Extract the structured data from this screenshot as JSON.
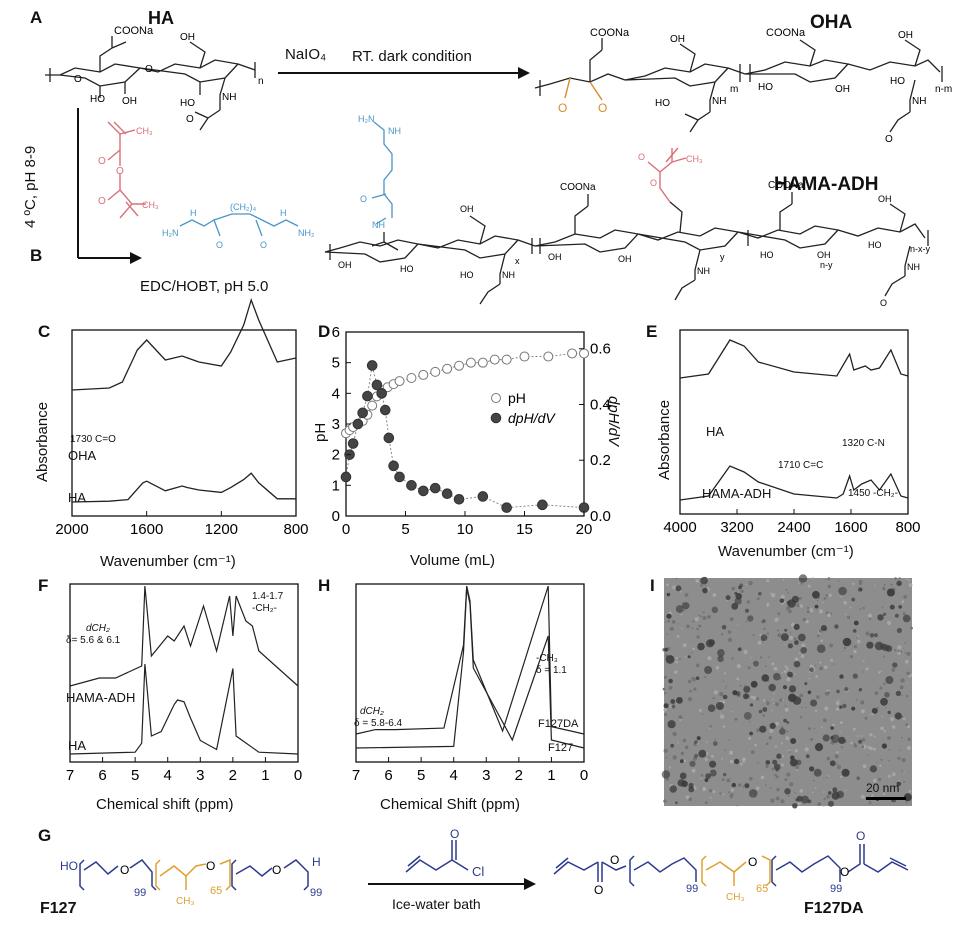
{
  "scheme": {
    "panel_a": "A",
    "panel_b": "B",
    "ha_title": "HA",
    "oha_title": "OHA",
    "hama_adh_title": "HAMA-ADH",
    "reagent_naio4": "NaIO₄",
    "cond_dark": "RT. dark condition",
    "cond_cold": "4 ºC, pH 8-9",
    "cond_edc": "EDC/HOBT, pH 5.0",
    "coona": "COONa",
    "oh": "OH",
    "nh": "NH",
    "h2n": "H₂N",
    "sub_n": "n",
    "sub_m": "m",
    "sub_nm": "n-m",
    "sub_x": "x",
    "sub_y": "y",
    "sub_ny": "n-y",
    "sub_nxy": "n-x-y",
    "ch3": "CH₃",
    "ch2_4": "(CH₂)₄",
    "nh2": "NH₂"
  },
  "panels": {
    "c": {
      "label": "C",
      "ylabel": "Absorbance",
      "xlabel": "Wavenumber (cm⁻¹)",
      "ticks": [
        "2000",
        "1600",
        "1200",
        "800"
      ],
      "annot": "1730 C=O",
      "series": [
        "OHA",
        "HA"
      ]
    },
    "d": {
      "label": "D",
      "ylabel_left": "pH",
      "ylabel_right": "dpH/dV",
      "xlabel": "Volume (mL)",
      "xticks": [
        "0",
        "5",
        "10",
        "15",
        "20"
      ],
      "yticks_left": [
        "0",
        "1",
        "2",
        "3",
        "4",
        "5",
        "6"
      ],
      "yticks_right": [
        "0.0",
        "0.2",
        "0.4",
        "0.6"
      ],
      "legend": [
        "pH",
        "dpH/dV"
      ]
    },
    "e": {
      "label": "E",
      "ylabel": "Absorbance",
      "xlabel": "Wavenumber (cm⁻¹)",
      "ticks": [
        "4000",
        "3200",
        "2400",
        "1600",
        "800"
      ],
      "annot_1": "1320 C-N",
      "annot_2": "1710 C=C",
      "annot_3": "1450 -CH₂-",
      "series": [
        "HA",
        "HAMA-ADH"
      ]
    },
    "f": {
      "label": "F",
      "xlabel": "Chemical shift (ppm)",
      "ticks": [
        "7",
        "6",
        "5",
        "4",
        "3",
        "2",
        "1",
        "0"
      ],
      "annot_1a": "1.4-1.7",
      "annot_1b": "-CH₂-",
      "annot_2a": "dCH₂",
      "annot_2b": "δ= 5.6 & 6.1",
      "series": [
        "HAMA-ADH",
        "HA"
      ]
    },
    "h": {
      "label": "H",
      "xlabel": "Chemical Shift (ppm)",
      "ticks": [
        "7",
        "6",
        "5",
        "4",
        "3",
        "2",
        "1",
        "0"
      ],
      "annot_1a": "-CH₃",
      "annot_1b": "δ = 1.1",
      "annot_2a": "dCH₂",
      "annot_2b": "δ = 5.8-6.4",
      "series": [
        "F127DA",
        "F127"
      ]
    },
    "i": {
      "label": "I",
      "scale": "20 nm"
    },
    "g": {
      "label": "G",
      "f127": "F127",
      "f127da": "F127DA",
      "cond": "Ice-water bath",
      "cl": "Cl",
      "ho": "HO",
      "h": "H",
      "n99": "99",
      "n65": "65",
      "ch3": "CH₃",
      "o": "O"
    }
  },
  "chart_data": [
    {
      "type": "line",
      "panel": "C",
      "xlabel": "Wavenumber (cm⁻¹)",
      "ylabel": "Absorbance",
      "xlim": [
        2000,
        800
      ],
      "series": [
        {
          "name": "OHA",
          "x": [
            2000,
            1800,
            1730,
            1650,
            1600,
            1500,
            1410,
            1380,
            1320,
            1200,
            1150,
            1080,
            1040,
            1000,
            900,
            800
          ],
          "y": [
            0.5,
            0.52,
            0.58,
            0.9,
            1.0,
            0.8,
            0.84,
            0.82,
            0.78,
            0.74,
            0.88,
            1.15,
            1.4,
            1.2,
            0.78,
            0.82
          ]
        },
        {
          "name": "HA",
          "x": [
            2000,
            1800,
            1700,
            1620,
            1600,
            1500,
            1410,
            1380,
            1320,
            1200,
            1150,
            1080,
            1040,
            1000,
            900,
            800
          ],
          "y": [
            0.1,
            0.11,
            0.13,
            0.34,
            0.36,
            0.24,
            0.3,
            0.28,
            0.25,
            0.22,
            0.28,
            0.38,
            0.46,
            0.34,
            0.14,
            0.14
          ]
        }
      ]
    },
    {
      "type": "scatter",
      "panel": "D",
      "xlabel": "Volume (mL)",
      "ylabel": "pH",
      "xlim": [
        0,
        20
      ],
      "ylim": [
        0,
        6
      ],
      "y2label": "dpH/dV",
      "y2lim": [
        0,
        0.66
      ],
      "series": [
        {
          "name": "pH",
          "axis": "left",
          "x": [
            0,
            0.3,
            0.6,
            1.0,
            1.4,
            1.8,
            2.2,
            2.6,
            3.0,
            3.5,
            4.0,
            4.5,
            5.5,
            6.5,
            7.5,
            8.5,
            9.5,
            10.5,
            11.5,
            12.5,
            13.5,
            15.0,
            17.0,
            19.0,
            20.0
          ],
          "y": [
            2.7,
            2.8,
            2.9,
            3.0,
            3.1,
            3.3,
            3.6,
            3.9,
            4.1,
            4.2,
            4.3,
            4.4,
            4.5,
            4.6,
            4.7,
            4.8,
            4.9,
            5.0,
            5.0,
            5.1,
            5.1,
            5.2,
            5.2,
            5.3,
            5.3
          ]
        },
        {
          "name": "dpH/dV",
          "axis": "right",
          "x": [
            0,
            0.3,
            0.6,
            1.0,
            1.4,
            1.8,
            2.2,
            2.6,
            3.0,
            3.3,
            3.6,
            4.0,
            4.5,
            5.5,
            6.5,
            7.5,
            8.5,
            9.5,
            11.5,
            13.5,
            16.5,
            20.0
          ],
          "y": [
            0.14,
            0.22,
            0.26,
            0.33,
            0.37,
            0.43,
            0.54,
            0.47,
            0.44,
            0.38,
            0.28,
            0.18,
            0.14,
            0.11,
            0.09,
            0.1,
            0.08,
            0.06,
            0.07,
            0.03,
            0.04,
            0.03
          ]
        }
      ]
    },
    {
      "type": "line",
      "panel": "E",
      "xlabel": "Wavenumber (cm⁻¹)",
      "ylabel": "Absorbance",
      "xlim": [
        4000,
        800
      ],
      "series": [
        {
          "name": "HA",
          "x": [
            4000,
            3600,
            3300,
            3100,
            2900,
            2400,
            1800,
            1620,
            1560,
            1400,
            1320,
            1200,
            1040,
            900,
            800
          ],
          "y": [
            0.62,
            0.66,
            1.0,
            0.94,
            0.78,
            0.68,
            0.64,
            0.86,
            0.7,
            0.74,
            0.7,
            0.72,
            0.9,
            0.66,
            0.64
          ]
        },
        {
          "name": "HAMA-ADH",
          "x": [
            4000,
            3600,
            3300,
            3100,
            2900,
            2400,
            1800,
            1710,
            1620,
            1560,
            1450,
            1320,
            1200,
            1040,
            900,
            800
          ],
          "y": [
            0.1,
            0.14,
            0.44,
            0.38,
            0.28,
            0.16,
            0.12,
            0.16,
            0.34,
            0.2,
            0.26,
            0.3,
            0.2,
            0.36,
            0.14,
            0.12
          ]
        }
      ]
    },
    {
      "type": "line",
      "panel": "F",
      "xlabel": "Chemical shift (ppm)",
      "xlim": [
        7,
        0
      ],
      "series": [
        {
          "name": "HAMA-ADH",
          "x": [
            7.0,
            6.1,
            5.6,
            4.8,
            4.7,
            4.5,
            4.0,
            3.8,
            3.5,
            3.3,
            2.9,
            2.5,
            2.1,
            2.0,
            1.9,
            1.6,
            1.4,
            1.2,
            0.0
          ],
          "y": [
            0.0,
            0.08,
            0.08,
            0.2,
            1.0,
            0.3,
            0.5,
            0.45,
            0.6,
            0.4,
            0.8,
            0.35,
            0.9,
            0.5,
            0.9,
            0.65,
            0.6,
            0.35,
            0.0
          ]
        },
        {
          "name": "HA",
          "x": [
            7.0,
            5.0,
            4.8,
            4.7,
            4.5,
            4.2,
            3.8,
            3.7,
            3.5,
            3.3,
            3.0,
            2.5,
            2.0,
            1.9,
            1.2,
            0.0
          ],
          "y": [
            0.0,
            0.02,
            0.12,
            1.0,
            0.2,
            0.25,
            0.55,
            0.6,
            0.58,
            0.4,
            0.15,
            0.05,
            0.95,
            0.2,
            0.02,
            0.0
          ]
        }
      ]
    },
    {
      "type": "line",
      "panel": "H",
      "xlabel": "Chemical Shift (ppm)",
      "xlim": [
        7,
        0
      ],
      "series": [
        {
          "name": "F127DA",
          "x": [
            7.0,
            6.4,
            6.1,
            5.8,
            4.3,
            3.7,
            3.6,
            3.5,
            3.4,
            2.5,
            1.1,
            1.0,
            0.0
          ],
          "y": [
            0.0,
            0.03,
            0.03,
            0.03,
            0.04,
            0.6,
            1.0,
            0.9,
            0.5,
            0.02,
            1.0,
            0.05,
            0.0
          ]
        },
        {
          "name": "F127",
          "x": [
            7.0,
            4.0,
            3.7,
            3.6,
            3.5,
            3.4,
            2.2,
            1.1,
            1.0,
            0.0
          ],
          "y": [
            0.0,
            0.01,
            0.6,
            1.0,
            0.9,
            0.5,
            0.05,
            0.7,
            0.05,
            0.0
          ]
        }
      ]
    }
  ]
}
